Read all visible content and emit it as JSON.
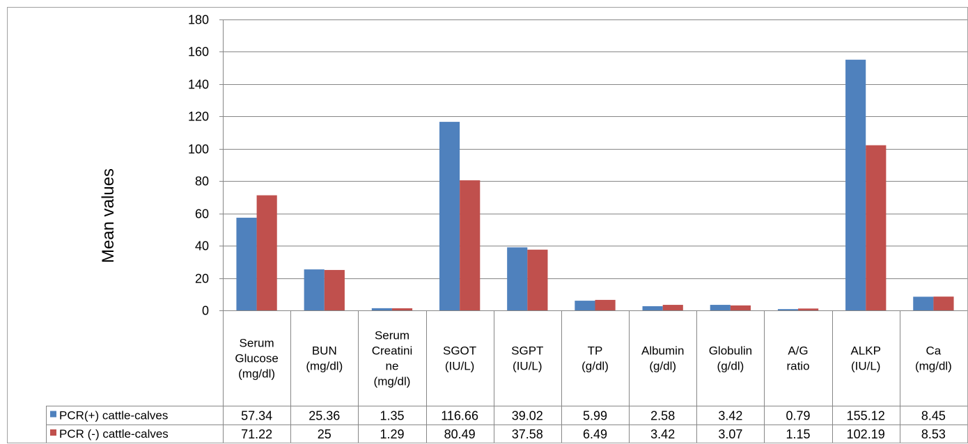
{
  "chart_data": {
    "type": "bar",
    "ylabel": "Mean values",
    "ylim": [
      0,
      180
    ],
    "yticks": [
      0,
      20,
      40,
      60,
      80,
      100,
      120,
      140,
      160,
      180
    ],
    "grid": true,
    "legend": "data-table",
    "categories": [
      [
        "Serum",
        "Glucose",
        "(mg/dl)"
      ],
      [
        "BUN",
        "(mg/dl)"
      ],
      [
        "Serum",
        "Creatini",
        "ne",
        "(mg/dl)"
      ],
      [
        "SGOT",
        "(IU/L)"
      ],
      [
        "SGPT",
        "(IU/L)"
      ],
      [
        "TP",
        "(g/dl)"
      ],
      [
        "Albumin",
        "(g/dl)"
      ],
      [
        "Globulin",
        "(g/dl)"
      ],
      [
        "A/G",
        "ratio"
      ],
      [
        "ALKP",
        "(IU/L)"
      ],
      [
        "Ca",
        "(mg/dl)"
      ]
    ],
    "series": [
      {
        "name": "PCR(+) cattle-calves",
        "color": "#4F81BD",
        "values": [
          57.34,
          25.36,
          1.35,
          116.66,
          39.02,
          5.99,
          2.58,
          3.42,
          0.79,
          155.12,
          8.45
        ],
        "labels": [
          "57.34",
          "25.36",
          "1.35",
          "116.66",
          "39.02",
          "5.99",
          "2.58",
          "3.42",
          "0.79",
          "155.12",
          "8.45"
        ]
      },
      {
        "name": "PCR (-) cattle-calves",
        "color": "#C0504D",
        "values": [
          71.22,
          25,
          1.29,
          80.49,
          37.58,
          6.49,
          3.42,
          3.07,
          1.15,
          102.19,
          8.53
        ],
        "labels": [
          "71.22",
          "25",
          "1.29",
          "80.49",
          "37.58",
          "6.49",
          "3.42",
          "3.07",
          "1.15",
          "102.19",
          "8.53"
        ]
      }
    ]
  }
}
